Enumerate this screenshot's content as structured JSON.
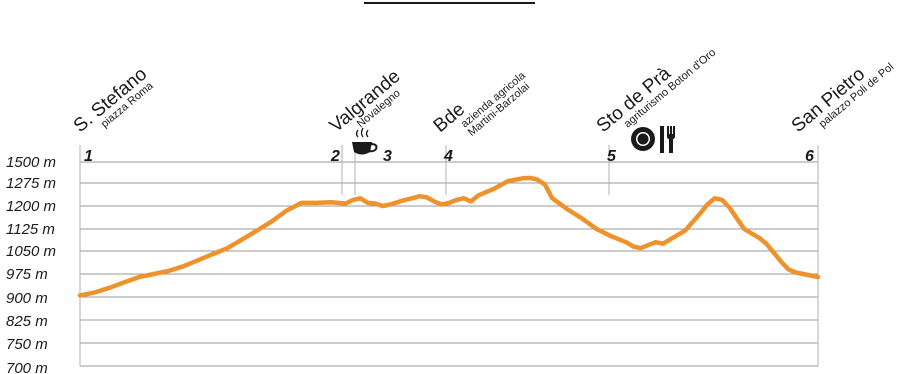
{
  "chart_data": {
    "type": "line",
    "ylabels": [
      "1500 m",
      "1275 m",
      "1200 m",
      "1125 m",
      "1050 m",
      "975 m",
      "900 m",
      "825 m",
      "750 m",
      "700 m"
    ],
    "points": [
      {
        "number": "1",
        "name": "S. Stefano",
        "sub": [
          "piazza Roma"
        ],
        "icon": ""
      },
      {
        "number": "2",
        "name": "Valgrande",
        "sub": [
          "Novalegno"
        ],
        "icon": "coffee-icon"
      },
      {
        "number": "3",
        "name": "",
        "sub": [],
        "icon": ""
      },
      {
        "number": "4",
        "name": "Bde",
        "sub": [
          "azienda agricola",
          "Martini-Barzolai"
        ],
        "icon": ""
      },
      {
        "number": "5",
        "name": "Sto de Prà",
        "sub": [
          "agriturismo Boton d'Oro"
        ],
        "icon": "restaurant-icon"
      },
      {
        "number": "6",
        "name": "San Pietro",
        "sub": [
          "palazzo Poli de Pol"
        ],
        "icon": ""
      }
    ],
    "profile": [
      [
        0,
        905
      ],
      [
        0.02,
        915
      ],
      [
        0.04,
        930
      ],
      [
        0.06,
        948
      ],
      [
        0.08,
        965
      ],
      [
        0.1,
        975
      ],
      [
        0.12,
        985
      ],
      [
        0.14,
        1000
      ],
      [
        0.16,
        1020
      ],
      [
        0.18,
        1040
      ],
      [
        0.2,
        1060
      ],
      [
        0.22,
        1090
      ],
      [
        0.24,
        1120
      ],
      [
        0.26,
        1150
      ],
      [
        0.28,
        1185
      ],
      [
        0.3,
        1210
      ],
      [
        0.32,
        1210
      ],
      [
        0.34,
        1212
      ],
      [
        0.36,
        1208
      ],
      [
        0.37,
        1220
      ],
      [
        0.38,
        1225
      ],
      [
        0.39,
        1210
      ],
      [
        0.4,
        1208
      ],
      [
        0.41,
        1200
      ],
      [
        0.42,
        1205
      ],
      [
        0.43,
        1212
      ],
      [
        0.44,
        1220
      ],
      [
        0.45,
        1225
      ],
      [
        0.46,
        1232
      ],
      [
        0.47,
        1228
      ],
      [
        0.48,
        1215
      ],
      [
        0.49,
        1205
      ],
      [
        0.5,
        1210
      ],
      [
        0.51,
        1220
      ],
      [
        0.52,
        1225
      ],
      [
        0.53,
        1215
      ],
      [
        0.54,
        1235
      ],
      [
        0.56,
        1255
      ],
      [
        0.58,
        1295
      ],
      [
        0.6,
        1325
      ],
      [
        0.61,
        1330
      ],
      [
        0.62,
        1310
      ],
      [
        0.63,
        1270
      ],
      [
        0.64,
        1225
      ],
      [
        0.66,
        1190
      ],
      [
        0.68,
        1160
      ],
      [
        0.7,
        1125
      ],
      [
        0.72,
        1100
      ],
      [
        0.74,
        1080
      ],
      [
        0.75,
        1065
      ],
      [
        0.76,
        1060
      ],
      [
        0.77,
        1070
      ],
      [
        0.78,
        1080
      ],
      [
        0.79,
        1075
      ],
      [
        0.8,
        1090
      ],
      [
        0.82,
        1120
      ],
      [
        0.84,
        1175
      ],
      [
        0.85,
        1205
      ],
      [
        0.86,
        1225
      ],
      [
        0.87,
        1220
      ],
      [
        0.88,
        1195
      ],
      [
        0.89,
        1160
      ],
      [
        0.9,
        1125
      ],
      [
        0.92,
        1095
      ],
      [
        0.93,
        1075
      ],
      [
        0.94,
        1045
      ],
      [
        0.95,
        1015
      ],
      [
        0.96,
        990
      ],
      [
        0.97,
        980
      ],
      [
        0.98,
        975
      ],
      [
        0.99,
        970
      ],
      [
        1.0,
        965
      ]
    ],
    "colors": {
      "line": "#f0922b",
      "grid": "#9a9a9a",
      "text": "#1a1a1a"
    }
  }
}
